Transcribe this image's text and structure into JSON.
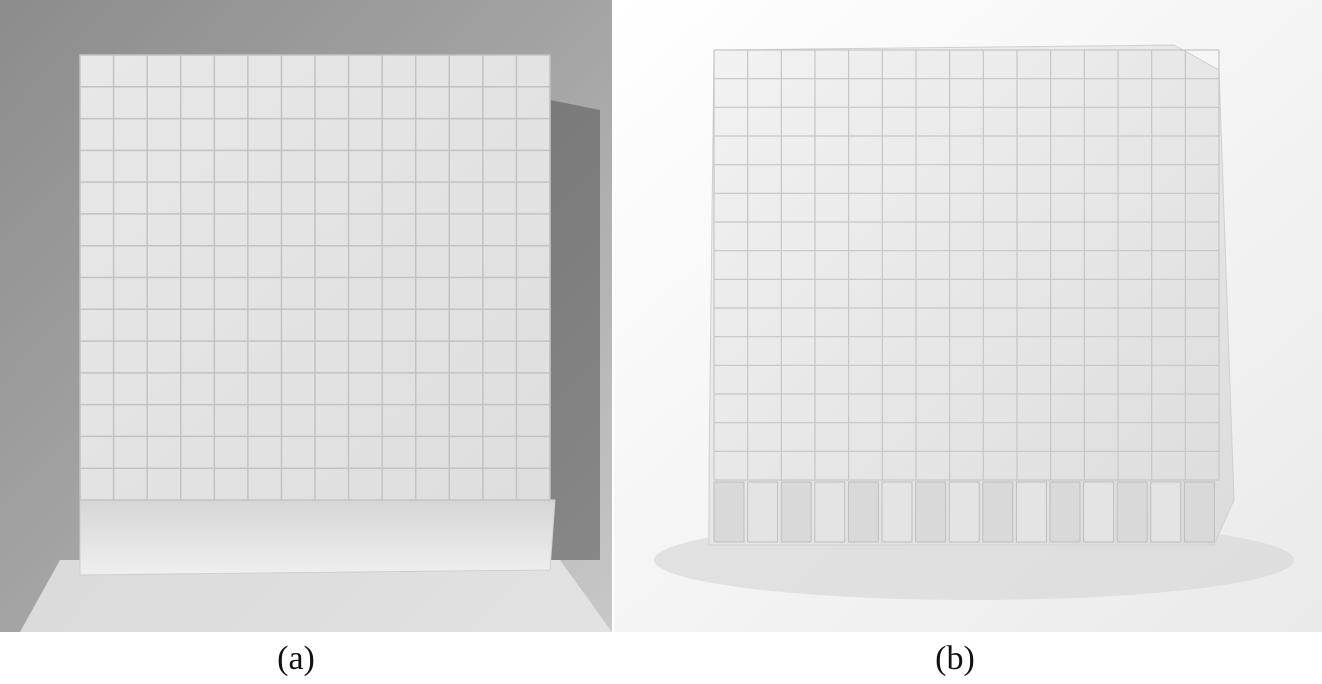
{
  "figure": {
    "panels": [
      {
        "id": "a",
        "caption": "(a)",
        "subject": "crystal-array-top-view"
      },
      {
        "id": "b",
        "caption": "(b)",
        "subject": "crystal-array-side-view"
      }
    ],
    "colors": {
      "background_a": "#9a9a9a",
      "background_b": "#f0f0f0",
      "crystal_face": "#e6e6e6",
      "grid_line": "#bdbdbd"
    }
  }
}
